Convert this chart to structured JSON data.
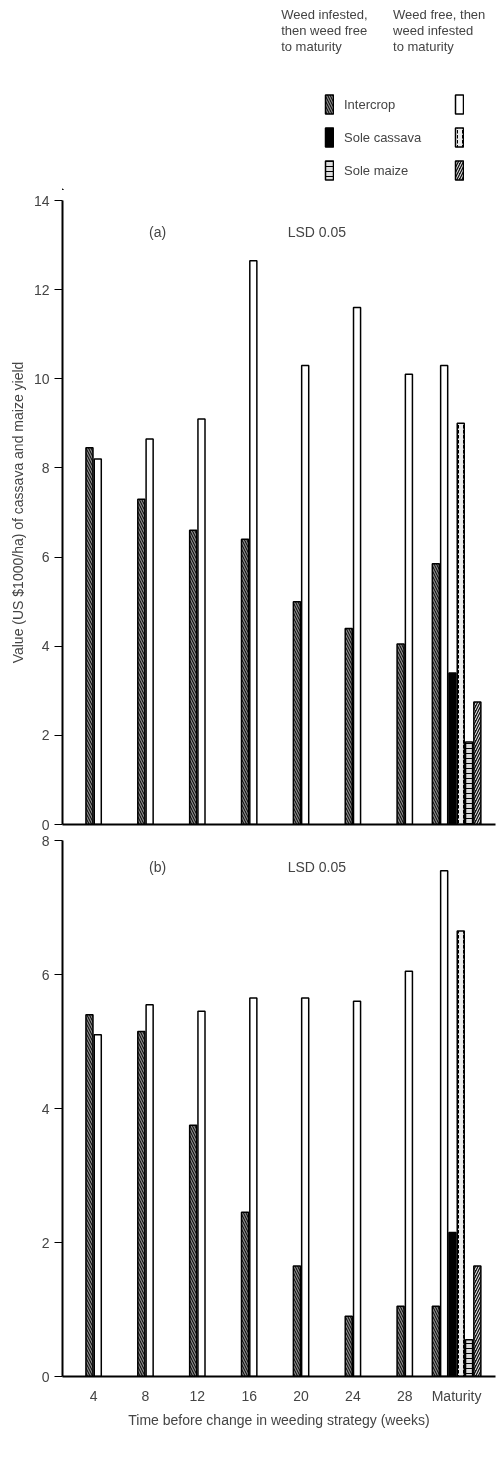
{
  "chart_data": [
    {
      "type": "bar",
      "categories": [
        "4",
        "8",
        "12",
        "16",
        "20",
        "24",
        "28",
        "Maturity"
      ],
      "ylabel": "Value (US $1000/ha) of cassava and maize yield",
      "ylim": [
        0,
        14
      ],
      "yticks": [
        0,
        2,
        4,
        6,
        8,
        10,
        12,
        14
      ],
      "tick_labels": "y",
      "legend": "top",
      "grid": false,
      "annotations": [
        "Weed infested, then weed free to maturity",
        "Weed free, then weed infested to maturity",
        "(a)",
        "LSD 0.05"
      ],
      "series": [
        {
          "name": "Intercrop",
          "color": "#888888",
          "values": [
            8.45,
            7.3,
            6.6,
            6.4,
            5.0,
            4.4,
            4.05,
            5.85
          ]
        },
        {
          "color": "#ffffff",
          "values": [
            8.2,
            8.65,
            9.1,
            12.65,
            10.3,
            11.6,
            10.1,
            10.3
          ]
        },
        {
          "name": "Sole cassava",
          "color": "#000000",
          "values": [
            null,
            null,
            null,
            null,
            null,
            null,
            null,
            3.4
          ]
        },
        {
          "color": "#eeeeee",
          "values": [
            null,
            null,
            null,
            null,
            null,
            null,
            null,
            9.0
          ]
        },
        {
          "name": "Sole maize",
          "color": "#dddddd",
          "values": [
            null,
            null,
            null,
            null,
            null,
            null,
            null,
            1.85
          ]
        },
        {
          "color": "#111111",
          "values": [
            null,
            null,
            null,
            null,
            null,
            null,
            null,
            2.75
          ]
        }
      ]
    },
    {
      "type": "bar",
      "categories": [
        "4",
        "8",
        "12",
        "16",
        "20",
        "24",
        "28",
        "Maturity"
      ],
      "xlabel": "Time before change in weeding strategy (weeks)",
      "ylim": [
        0,
        8
      ],
      "yticks": [
        0,
        2,
        4,
        6,
        8
      ],
      "grid": false,
      "annotations": [
        "(b)",
        "LSD 0.05"
      ],
      "series": [
        {
          "color": "#888888",
          "values": [
            5.4,
            5.15,
            3.75,
            2.45,
            1.65,
            0.9,
            1.05,
            1.05
          ]
        },
        {
          "color": "#ffffff",
          "values": [
            5.1,
            5.55,
            5.45,
            5.65,
            5.65,
            5.6,
            6.05,
            7.55
          ]
        },
        {
          "color": "#000000",
          "values": [
            null,
            null,
            null,
            null,
            null,
            null,
            null,
            2.15
          ]
        },
        {
          "color": "#eeeeee",
          "values": [
            null,
            null,
            null,
            null,
            null,
            null,
            null,
            6.65
          ]
        },
        {
          "color": "#dddddd",
          "values": [
            null,
            null,
            null,
            null,
            null,
            null,
            null,
            0.55
          ]
        },
        {
          "color": "#111111",
          "values": [
            null,
            null,
            null,
            null,
            null,
            null,
            null,
            1.65
          ]
        }
      ]
    }
  ]
}
